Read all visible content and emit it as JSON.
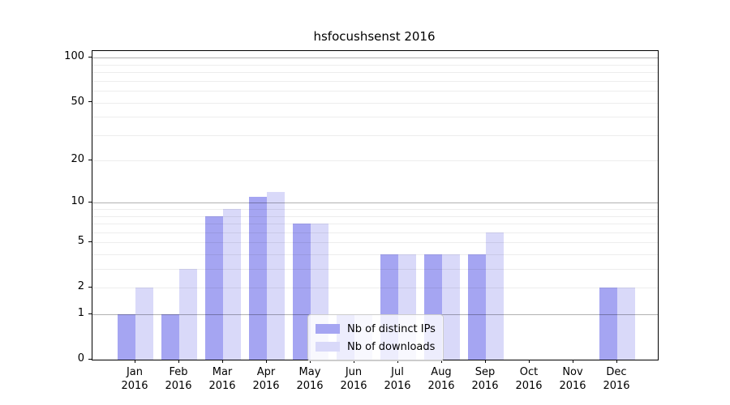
{
  "figure": {
    "background": "#ffffff"
  },
  "chart_data": {
    "type": "bar",
    "title": "hsfocushsenst 2016",
    "categories": [
      "Jan 2016",
      "Feb 2016",
      "Mar 2016",
      "Apr 2016",
      "May 2016",
      "Jun 2016",
      "Jul 2016",
      "Aug 2016",
      "Sep 2016",
      "Oct 2016",
      "Nov 2016",
      "Dec 2016"
    ],
    "series": [
      {
        "name": "Nb of distinct IPs",
        "color": "#a5a5f2",
        "values": [
          1,
          1,
          8,
          11,
          7,
          1,
          4,
          4,
          4,
          0,
          0,
          2
        ]
      },
      {
        "name": "Nb of downloads",
        "color": "#d9d9f9",
        "values": [
          2,
          3,
          9,
          12,
          7,
          1,
          4,
          4,
          6,
          0,
          0,
          2
        ]
      }
    ],
    "xlabel": "",
    "ylabel": "",
    "yscale": "log1p",
    "ylim": [
      0,
      100
    ],
    "y_ticks": [
      0,
      1,
      2,
      5,
      10,
      20,
      50,
      100
    ],
    "grid": {
      "major": [
        1,
        10,
        100
      ],
      "minor": [
        2,
        3,
        4,
        5,
        6,
        7,
        8,
        9,
        20,
        30,
        40,
        50,
        60,
        70,
        80,
        90
      ]
    },
    "legend_position": "lower center"
  }
}
